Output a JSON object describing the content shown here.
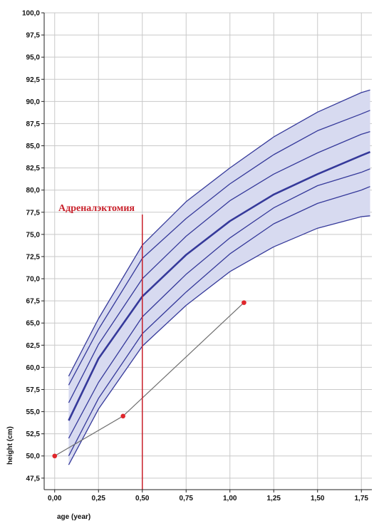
{
  "chart_data": {
    "type": "line",
    "xlabel": "age (year)",
    "ylabel": "height (cm)",
    "xlim": [
      -0.06,
      1.81
    ],
    "ylim": [
      46.2,
      100.0
    ],
    "x_ticks": [
      0.0,
      0.25,
      0.5,
      0.75,
      1.0,
      1.25,
      1.5,
      1.75
    ],
    "x_tick_labels": [
      "0,00",
      "0,25",
      "0,50",
      "0,75",
      "1,00",
      "1,25",
      "1,50",
      "1,75"
    ],
    "y_ticks": [
      47.5,
      50.0,
      52.5,
      55.0,
      57.5,
      60.0,
      62.5,
      65.0,
      67.5,
      70.0,
      72.5,
      75.0,
      77.5,
      80.0,
      82.5,
      85.0,
      87.5,
      90.0,
      92.5,
      95.0,
      97.5,
      100.0
    ],
    "y_tick_labels": [
      "47,5",
      "50,0",
      "52,5",
      "55,0",
      "57,5",
      "60,0",
      "62,5",
      "65,0",
      "67,5",
      "70,0",
      "72,5",
      "75,0",
      "77,5",
      "80,0",
      "82,5",
      "85,0",
      "87,5",
      "90,0",
      "92,5",
      "95,0",
      "97,5",
      "100,0"
    ],
    "grid": true,
    "band_color": "#d7daf0",
    "curve_color": "#35399a",
    "patient_color": "#e0262b",
    "patient_line_color": "#6e6e6e",
    "annotation_color": "#c8202a",
    "percentile_x": [
      0.08,
      0.25,
      0.5,
      0.75,
      1.0,
      1.25,
      1.5,
      1.75,
      1.8
    ],
    "percentile_curves": [
      {
        "values": [
          49.0,
          55.3,
          62.4,
          67.0,
          70.8,
          73.6,
          75.7,
          77.0,
          77.1
        ]
      },
      {
        "values": [
          50.0,
          56.5,
          63.8,
          68.5,
          72.8,
          76.2,
          78.5,
          80.0,
          80.4
        ]
      },
      {
        "values": [
          52.0,
          58.3,
          65.7,
          70.5,
          74.6,
          78.0,
          80.5,
          82.0,
          82.4
        ]
      },
      {
        "values": [
          54.0,
          61.0,
          68.0,
          72.7,
          76.5,
          79.5,
          81.8,
          83.9,
          84.3
        ],
        "median": true
      },
      {
        "values": [
          56.0,
          62.6,
          70.0,
          74.8,
          78.8,
          81.8,
          84.2,
          86.3,
          86.6
        ]
      },
      {
        "values": [
          58.0,
          64.3,
          72.3,
          76.8,
          80.7,
          84.0,
          86.7,
          88.6,
          89.0
        ]
      },
      {
        "values": [
          59.0,
          65.5,
          73.8,
          78.7,
          82.5,
          86.0,
          88.8,
          91.0,
          91.3
        ]
      }
    ],
    "patient_points": {
      "x": [
        0.0,
        0.39,
        1.08
      ],
      "y": [
        50.0,
        54.5,
        67.3
      ]
    },
    "marker_x": 0.5,
    "annotation": "Адреналэктомия"
  }
}
